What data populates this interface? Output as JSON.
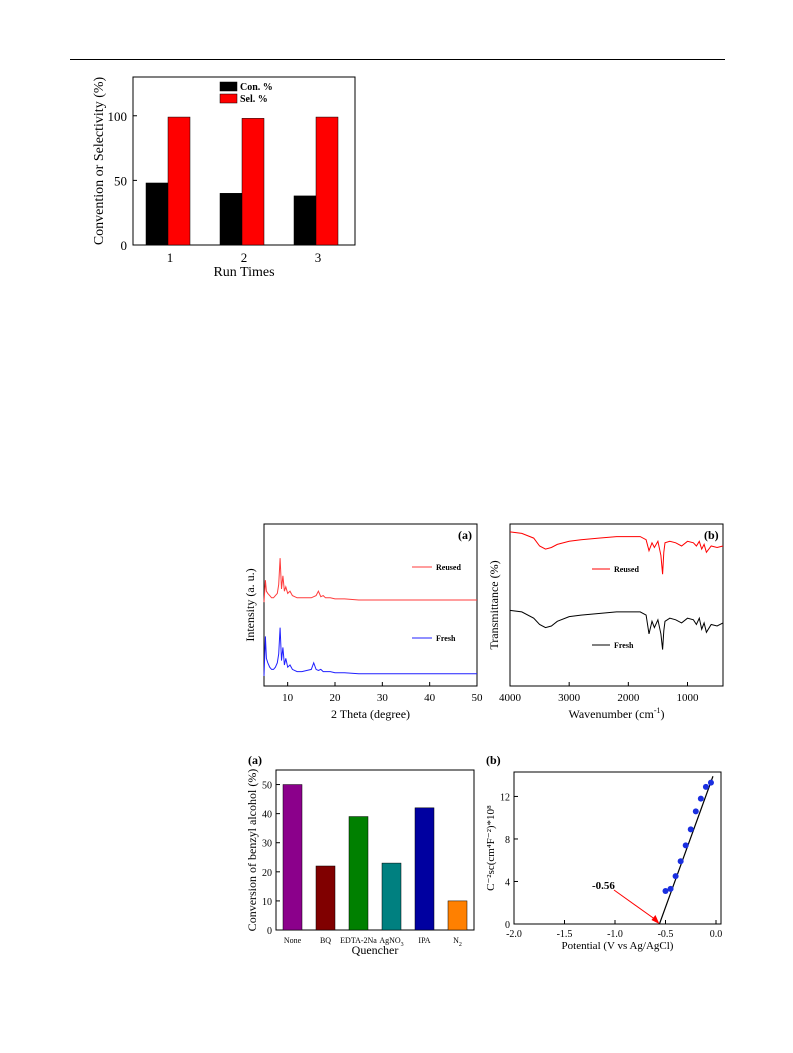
{
  "chart_data": [
    {
      "id": "fig1",
      "type": "bar",
      "categories": [
        "1",
        "2",
        "3"
      ],
      "series": [
        {
          "name": "Con. %",
          "values": [
            48,
            40,
            38
          ],
          "color": "#000000"
        },
        {
          "name": "Sel. %",
          "values": [
            99,
            98,
            99
          ],
          "color": "#ff0000"
        }
      ],
      "xlabel": "Run Times",
      "ylabel": "Convention or Selectivity (%)",
      "ylim": [
        0,
        130
      ],
      "yticks": [
        "0",
        "50",
        "100"
      ],
      "legend_position": "top-center"
    },
    {
      "id": "fig2a",
      "type": "line",
      "panel_label": "(a)",
      "xlabel": "2 Theta (degree)",
      "ylabel": "Intensity (a. u.)",
      "xlim": [
        5,
        50
      ],
      "xticks": [
        "10",
        "20",
        "30",
        "40",
        "50"
      ],
      "series": [
        {
          "name": "Reused",
          "color": "#ff3b3b",
          "x": [
            5,
            5.3,
            5.5,
            5.8,
            6.2,
            6.6,
            7,
            7.4,
            7.8,
            8.1,
            8.4,
            8.7,
            9,
            9.3,
            9.6,
            10,
            10.5,
            11,
            12,
            13,
            14,
            15,
            15.5,
            16,
            16.5,
            17,
            17.5,
            18,
            19,
            20,
            22,
            25,
            30,
            35,
            40,
            45,
            50
          ],
          "y": [
            26,
            36,
            31,
            30,
            29,
            28,
            28,
            29,
            30,
            34,
            46,
            32,
            38,
            31,
            33,
            30,
            31,
            29,
            28,
            28,
            28,
            28,
            28.5,
            29,
            31,
            28.5,
            29,
            28,
            28,
            27.5,
            27.5,
            27,
            27,
            27,
            27,
            27,
            27
          ]
        },
        {
          "name": "Fresh",
          "color": "#2020ff",
          "x": [
            5,
            5.3,
            5.5,
            5.8,
            6.2,
            6.6,
            7,
            7.4,
            7.8,
            8.1,
            8.4,
            8.7,
            9,
            9.3,
            9.6,
            10,
            10.5,
            11,
            12,
            13,
            14,
            15,
            15.5,
            16,
            16.5,
            17,
            17.5,
            18,
            19,
            20,
            22,
            25,
            30,
            35,
            40,
            45,
            50
          ],
          "y": [
            0,
            18,
            8,
            6,
            4,
            3,
            3,
            4,
            6,
            10,
            22,
            7,
            13,
            5,
            8,
            4,
            5,
            3,
            2,
            2,
            2.5,
            3,
            6,
            3,
            2.5,
            3,
            2,
            2,
            2,
            1.5,
            1.5,
            1,
            1,
            1,
            1,
            1,
            1
          ]
        }
      ],
      "legend_position": "right, beside each curve"
    },
    {
      "id": "fig2b",
      "type": "line",
      "panel_label": "(b)",
      "xlabel": "Wavenumber (cm",
      "xlabel_sup": "-1",
      "xlabel_end": ")",
      "ylabel": "Transmittance (%)",
      "xlim": [
        4000,
        400
      ],
      "xticks": [
        "4000",
        "3000",
        "2000",
        "1000"
      ],
      "series": [
        {
          "name": "Reused",
          "color": "#ff0000",
          "x": [
            4000,
            3800,
            3600,
            3500,
            3400,
            3300,
            3200,
            3000,
            2800,
            2500,
            2200,
            2000,
            1800,
            1700,
            1650,
            1600,
            1560,
            1500,
            1450,
            1420,
            1400,
            1380,
            1300,
            1200,
            1100,
            1000,
            900,
            850,
            800,
            760,
            720,
            680,
            600,
            500,
            400
          ],
          "y": [
            95,
            94,
            91,
            86,
            84,
            85,
            87,
            89,
            90,
            91,
            92,
            92,
            92,
            90,
            83,
            88,
            85,
            89,
            80,
            68,
            82,
            88,
            89,
            88,
            86,
            89,
            88,
            86,
            89,
            84,
            87,
            82,
            86,
            85,
            86
          ]
        },
        {
          "name": "Fresh",
          "color": "#000000",
          "x": [
            4000,
            3800,
            3600,
            3500,
            3400,
            3300,
            3200,
            3000,
            2800,
            2500,
            2200,
            2000,
            1800,
            1700,
            1650,
            1600,
            1560,
            1500,
            1450,
            1420,
            1400,
            1380,
            1300,
            1200,
            1100,
            1000,
            900,
            850,
            800,
            760,
            720,
            680,
            600,
            500,
            400
          ],
          "y": [
            45,
            44,
            40,
            36,
            34,
            35,
            38,
            41,
            42,
            43,
            44,
            44,
            44,
            42,
            30,
            38,
            34,
            39,
            30,
            20,
            32,
            38,
            40,
            39,
            37,
            40,
            39,
            36,
            40,
            33,
            37,
            31,
            36,
            35,
            37
          ]
        }
      ],
      "legend_position": "center, beside each curve"
    },
    {
      "id": "fig3a",
      "type": "bar",
      "panel_label": "(a)",
      "categories": [
        "None",
        "BQ",
        "EDTA-2Na",
        "AgNO",
        "IPA",
        "N"
      ],
      "category_subscripts": [
        "",
        "",
        "",
        "3",
        "",
        "2"
      ],
      "values": [
        50,
        22,
        39,
        23,
        42,
        10
      ],
      "colors": [
        "#8b008b",
        "#800000",
        "#008000",
        "#008080",
        "#0000a0",
        "#ff8000"
      ],
      "xlabel": "Quencher",
      "ylabel": "Conversion of benzyl alcohol (%)",
      "ylim": [
        0,
        55
      ],
      "yticks": [
        "0",
        "10",
        "20",
        "30",
        "40",
        "50"
      ]
    },
    {
      "id": "fig3b",
      "type": "scatter",
      "panel_label": "(b)",
      "xlabel": "Potential (V vs Ag/AgCl)",
      "ylabel": "C⁻²sc(cm⁴F⁻²)*10⁸",
      "xlim": [
        -2.0,
        0.0
      ],
      "ylim": [
        0,
        14.3
      ],
      "xticks": [
        "-2.0",
        "-1.5",
        "-1.0",
        "-0.5",
        "0.0"
      ],
      "yticks": [
        "0",
        "4",
        "8",
        "12"
      ],
      "points": {
        "x": [
          -0.5,
          -0.45,
          -0.4,
          -0.35,
          -0.3,
          -0.25,
          -0.2,
          -0.15,
          -0.1,
          -0.05
        ],
        "y": [
          3.1,
          3.3,
          4.5,
          5.9,
          7.4,
          8.9,
          10.6,
          11.8,
          12.9,
          13.3
        ]
      },
      "fit_line": {
        "x": [
          -0.56,
          -0.03
        ],
        "y": [
          0,
          13.9
        ]
      },
      "annotation": "-0.56",
      "annotation_x": -0.56
    }
  ]
}
